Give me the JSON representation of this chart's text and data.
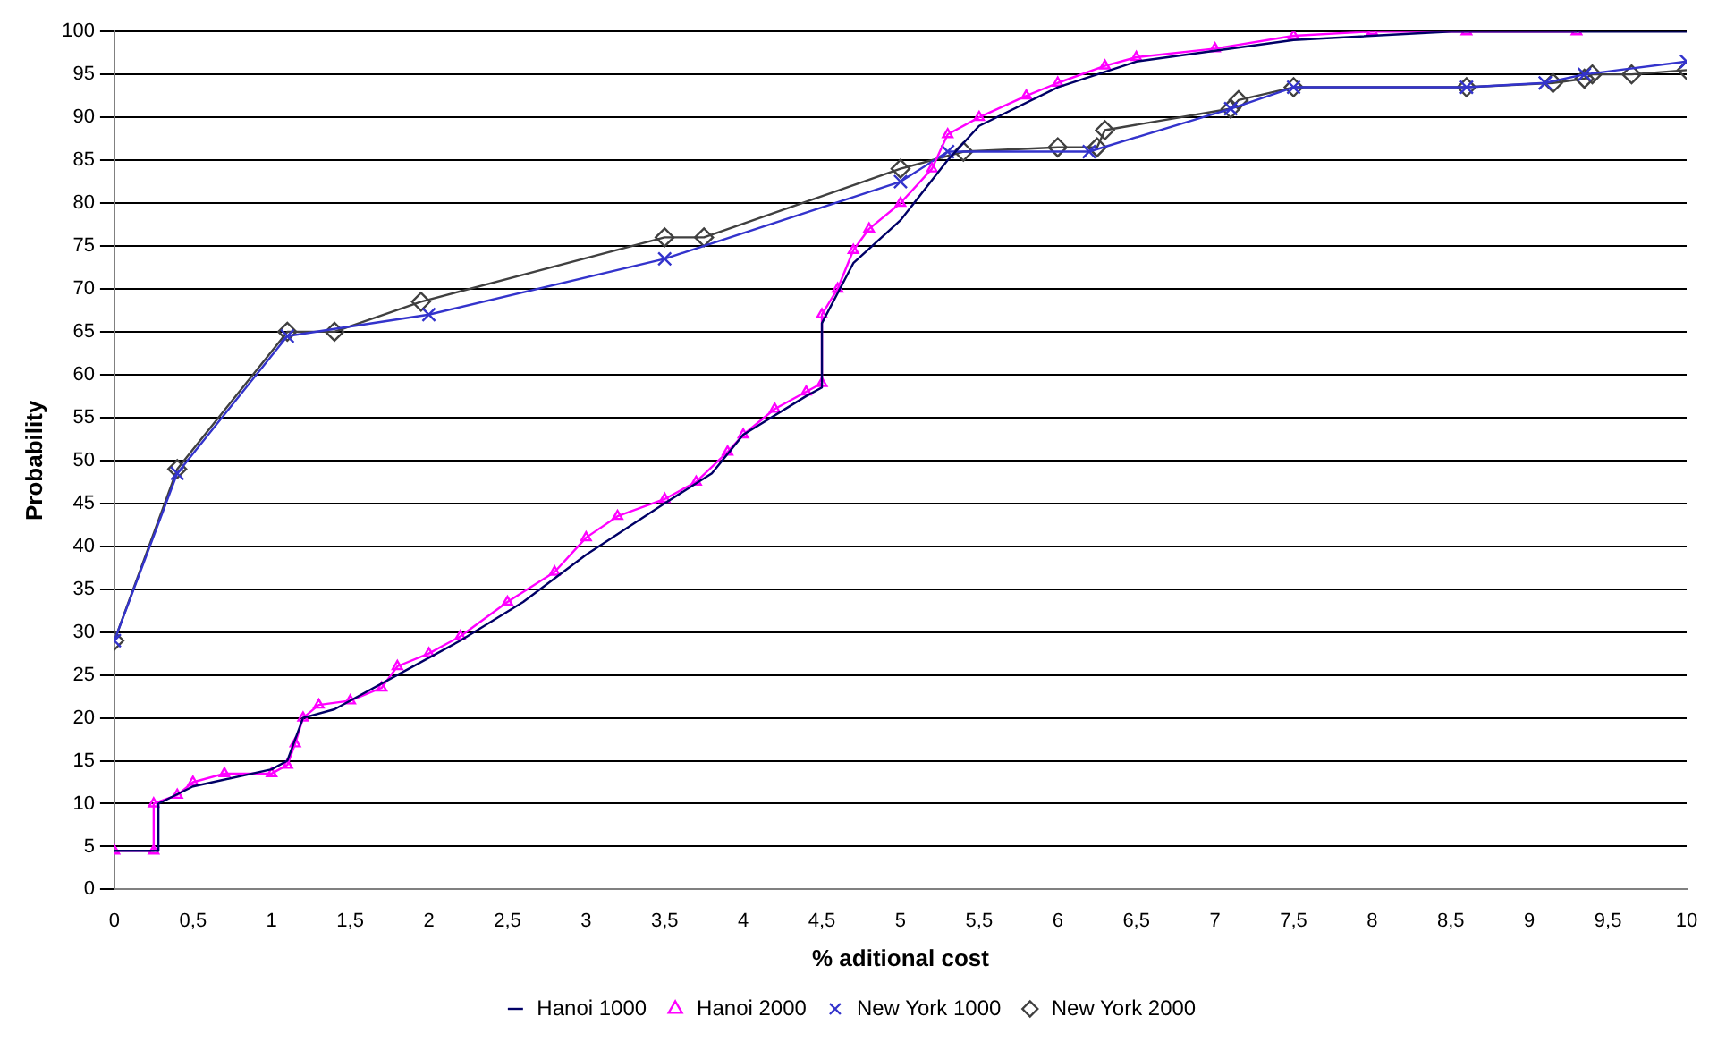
{
  "chart_data": {
    "type": "line",
    "xlabel": "% aditional cost",
    "ylabel": "Probability",
    "xlim": [
      0,
      10
    ],
    "xticks": [
      0,
      {
        "value": 0.5,
        "label": "0,5"
      },
      1,
      {
        "value": 1.5,
        "label": "1,5"
      },
      2,
      {
        "value": 2.5,
        "label": "2,5"
      },
      3,
      {
        "value": 3.5,
        "label": "3,5"
      },
      4,
      {
        "value": 4.5,
        "label": "4,5"
      },
      5,
      {
        "value": 5.5,
        "label": "5,5"
      },
      6,
      {
        "value": 6.5,
        "label": "6,5"
      },
      7,
      {
        "value": 7.5,
        "label": "7,5"
      },
      8,
      {
        "value": 8.5,
        "label": "8,5"
      },
      9,
      {
        "value": 9.5,
        "label": "9,5"
      },
      10
    ],
    "ylim": [
      0,
      100
    ],
    "yticks": [
      0,
      5,
      10,
      15,
      20,
      25,
      30,
      35,
      40,
      45,
      50,
      55,
      60,
      65,
      70,
      75,
      80,
      85,
      90,
      95,
      100
    ],
    "grid": "y",
    "legend": "bottom",
    "series": [
      {
        "name": "Hanoi 1000",
        "color": "#000066",
        "marker": "none",
        "x": [
          0,
          0.28,
          0.28,
          0.5,
          1.0,
          1.1,
          1.2,
          1.4,
          1.8,
          2.2,
          2.6,
          3.0,
          3.5,
          3.8,
          4.0,
          4.4,
          4.5,
          4.5,
          4.7,
          5.0,
          5.3,
          5.5,
          6.0,
          6.5,
          7.5,
          8.5,
          10
        ],
        "values": [
          4.5,
          4.5,
          10,
          12,
          14,
          15,
          20,
          21,
          25,
          29,
          33.5,
          39,
          45,
          48.5,
          53,
          57.5,
          58.5,
          66,
          73,
          78,
          85,
          89,
          93.5,
          96.5,
          99,
          100,
          100
        ]
      },
      {
        "name": "Hanoi 2000",
        "color": "#ff00ff",
        "marker": "triangle",
        "x": [
          0,
          0.25,
          0.25,
          0.4,
          0.5,
          0.7,
          1.0,
          1.1,
          1.15,
          1.2,
          1.3,
          1.5,
          1.7,
          1.8,
          2.0,
          2.2,
          2.5,
          2.8,
          3.0,
          3.2,
          3.5,
          3.7,
          3.9,
          4.0,
          4.2,
          4.4,
          4.5,
          4.5,
          4.6,
          4.7,
          4.8,
          5.0,
          5.2,
          5.3,
          5.5,
          5.8,
          6.0,
          6.3,
          6.5,
          7.0,
          7.5,
          8.0,
          8.6,
          9.3
        ],
        "values": [
          4.5,
          4.5,
          10,
          11,
          12.5,
          13.5,
          13.5,
          14.5,
          17,
          20,
          21.5,
          22,
          23.5,
          26,
          27.5,
          29.5,
          33.5,
          37,
          41,
          43.5,
          45.5,
          47.5,
          51,
          53,
          56,
          58,
          59,
          67,
          70,
          74.5,
          77,
          80,
          84,
          88,
          90,
          92.5,
          94,
          96,
          97,
          98,
          99.5,
          100,
          100,
          100
        ]
      },
      {
        "name": "New York 1000",
        "color": "#3333cc",
        "marker": "cross",
        "x": [
          0,
          0.4,
          1.1,
          2,
          3.5,
          5,
          5.3,
          6.2,
          7.1,
          7.5,
          8.6,
          9.1,
          9.35,
          10
        ],
        "values": [
          29,
          48.5,
          64.5,
          67,
          73.5,
          82.5,
          86,
          86,
          91,
          93.5,
          93.5,
          94,
          95,
          96.5
        ]
      },
      {
        "name": "New York 2000",
        "color": "#404040",
        "marker": "diamond",
        "x": [
          0,
          0.4,
          1.1,
          1.4,
          1.95,
          3.5,
          3.75,
          5,
          5.4,
          6,
          6.25,
          6.3,
          7.1,
          7.15,
          7.5,
          8.6,
          9.15,
          9.35,
          9.4,
          9.65,
          10
        ],
        "values": [
          29,
          49,
          65,
          65,
          68.5,
          76,
          76,
          84,
          86,
          86.5,
          86.5,
          88.5,
          91,
          92,
          93.5,
          93.5,
          94,
          94.5,
          95,
          95,
          95.5
        ]
      }
    ]
  }
}
